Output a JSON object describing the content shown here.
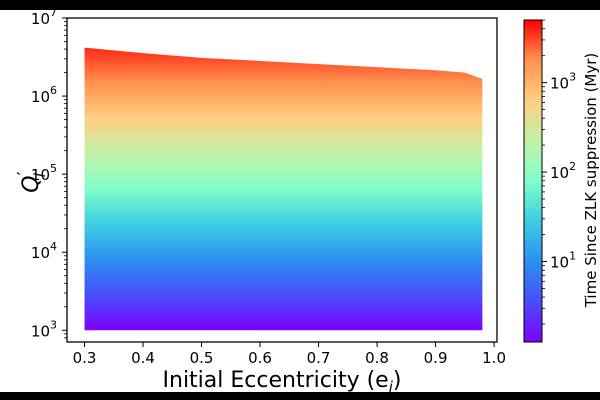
{
  "chart_data": {
    "type": "area",
    "xlabel": "Initial Eccentricity (e",
    "xlabel_sub": "i",
    "xlabel_close": ")",
    "ylabel_main": "Q",
    "ylabel_sub": "i",
    "ylabel_prime": "′",
    "xlim": [
      0.27,
      1.005
    ],
    "ylim_log10": [
      2.85,
      7.0
    ],
    "y_scale": "log",
    "x_ticks": [
      "0.3",
      "0.4",
      "0.5",
      "0.6",
      "0.7",
      "0.8",
      "0.9",
      "1.0"
    ],
    "x_tick_values": [
      0.3,
      0.4,
      0.5,
      0.6,
      0.7,
      0.8,
      0.9,
      1.0
    ],
    "y_ticks": [
      {
        "base": "10",
        "exp": "3",
        "value_log10": 3
      },
      {
        "base": "10",
        "exp": "4",
        "value_log10": 4
      },
      {
        "base": "10",
        "exp": "5",
        "value_log10": 5
      },
      {
        "base": "10",
        "exp": "6",
        "value_log10": 6
      },
      {
        "base": "10",
        "exp": "7",
        "value_log10": 7
      }
    ],
    "upper_boundary": {
      "x": [
        0.3,
        0.4,
        0.5,
        0.6,
        0.7,
        0.8,
        0.9,
        0.95,
        0.98
      ],
      "y_log10": [
        6.62,
        6.55,
        6.49,
        6.45,
        6.41,
        6.37,
        6.33,
        6.3,
        6.22
      ]
    },
    "lower_boundary": {
      "x_range": [
        0.3,
        0.98
      ],
      "y_log10": 3.0
    },
    "colorbar": {
      "label": "Time Since ZLK suppression (Myr)",
      "scale": "log",
      "range_log10": [
        0.1,
        3.7
      ],
      "ticks": [
        {
          "base": "10",
          "exp": "1",
          "value_log10": 1
        },
        {
          "base": "10",
          "exp": "2",
          "value_log10": 2
        },
        {
          "base": "10",
          "exp": "3",
          "value_log10": 3
        }
      ],
      "colormap": "rainbow"
    }
  }
}
